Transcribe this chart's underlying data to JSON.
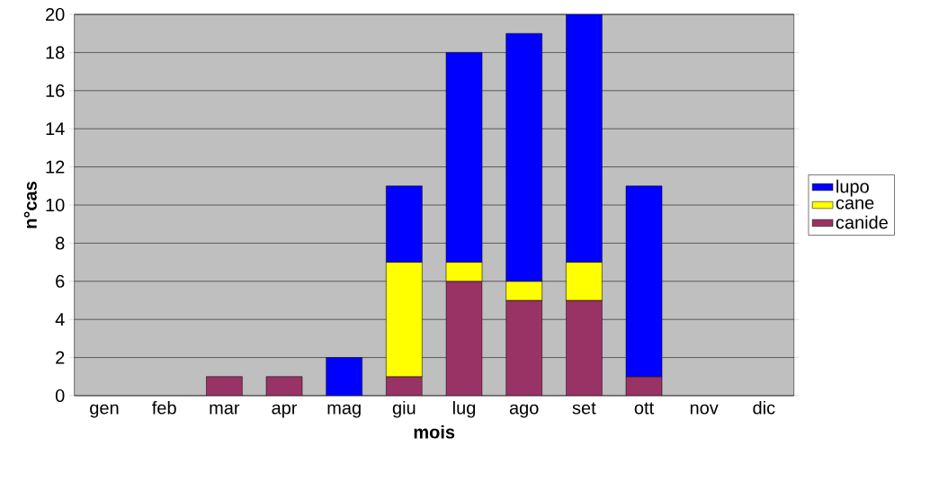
{
  "chart_data": {
    "type": "bar",
    "stacked": true,
    "xlabel": "mois",
    "ylabel": "n°cas",
    "categories": [
      "gen",
      "feb",
      "mar",
      "apr",
      "mag",
      "giu",
      "lug",
      "ago",
      "set",
      "ott",
      "nov",
      "dic"
    ],
    "series": [
      {
        "name": "canide",
        "color": "#993366",
        "values": [
          null,
          null,
          1,
          1,
          null,
          1,
          6,
          5,
          5,
          1,
          null,
          null
        ]
      },
      {
        "name": "cane",
        "color": "#ffff00",
        "values": [
          null,
          null,
          null,
          null,
          null,
          6,
          1,
          1,
          2,
          null,
          null,
          null
        ]
      },
      {
        "name": "lupo",
        "color": "#0000ff",
        "values": [
          null,
          null,
          null,
          null,
          2,
          4,
          11,
          13,
          13,
          10,
          null,
          null
        ]
      }
    ],
    "ylim": [
      0,
      20
    ],
    "yticks": [
      0,
      2,
      4,
      6,
      8,
      10,
      12,
      14,
      16,
      18,
      20
    ],
    "grid": "y",
    "legend": "right"
  }
}
